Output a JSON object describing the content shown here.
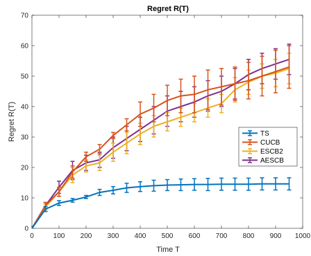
{
  "chart_data": {
    "type": "line",
    "title": "Regret R(T)",
    "xlabel": "Time T",
    "ylabel": "Regret R(T)",
    "xlim": [
      0,
      1000
    ],
    "ylim": [
      0,
      70
    ],
    "xticks": [
      0,
      100,
      200,
      300,
      400,
      500,
      600,
      700,
      800,
      900,
      1000
    ],
    "yticks": [
      0,
      10,
      20,
      30,
      40,
      50,
      60,
      70
    ],
    "grid": false,
    "legend_position": "right",
    "x": [
      0,
      50,
      100,
      150,
      200,
      250,
      300,
      350,
      400,
      450,
      500,
      550,
      600,
      650,
      700,
      750,
      800,
      850,
      900,
      950
    ],
    "series": [
      {
        "name": "TS",
        "color": "#0072BD",
        "values": [
          0,
          6.3,
          8.3,
          9.2,
          10.3,
          11.8,
          12.5,
          13.3,
          13.7,
          14.0,
          14.2,
          14.3,
          14.4,
          14.4,
          14.5,
          14.5,
          14.5,
          14.6,
          14.6,
          14.6
        ],
        "errors": [
          0,
          0.8,
          0.8,
          0.6,
          0.5,
          1.0,
          1.2,
          1.5,
          1.6,
          1.8,
          1.8,
          1.9,
          1.9,
          2.0,
          2.0,
          2.0,
          2.0,
          2.0,
          2.0,
          2.0
        ]
      },
      {
        "name": "CUCB",
        "color": "#D95319",
        "values": [
          0,
          7.5,
          12.0,
          18.5,
          23.5,
          26.0,
          30.5,
          34.0,
          37.5,
          39.5,
          42.0,
          43.5,
          44.0,
          45.5,
          46.5,
          47.5,
          48.5,
          50.0,
          51.5,
          53.0
        ],
        "errors": [
          0,
          1.0,
          1.5,
          2.0,
          1.5,
          1.5,
          1.0,
          2.0,
          4.0,
          4.5,
          5.0,
          5.5,
          6.0,
          6.5,
          6.0,
          5.5,
          6.0,
          6.5,
          7.0,
          7.0
        ]
      },
      {
        "name": "ESCB2",
        "color": "#EDB120",
        "values": [
          0,
          7.0,
          12.0,
          17.5,
          20.5,
          21.5,
          25.0,
          28.0,
          31.0,
          33.5,
          35.0,
          36.5,
          38.0,
          39.5,
          41.0,
          45.5,
          48.0,
          50.0,
          51.0,
          52.5
        ],
        "errors": [
          0,
          1.0,
          1.5,
          2.5,
          2.0,
          2.5,
          3.0,
          3.5,
          3.5,
          3.5,
          3.0,
          3.0,
          3.0,
          3.0,
          3.0,
          4.0,
          4.0,
          4.0,
          4.5,
          5.0
        ]
      },
      {
        "name": "AESCB",
        "color": "#7E2F8E",
        "values": [
          0,
          7.5,
          13.5,
          19.0,
          21.5,
          22.5,
          26.5,
          29.5,
          32.5,
          35.5,
          38.5,
          40.0,
          41.5,
          43.5,
          45.0,
          47.5,
          50.5,
          52.5,
          54.0,
          55.5
        ],
        "errors": [
          0,
          1.0,
          2.0,
          3.0,
          2.5,
          2.5,
          3.5,
          4.0,
          4.0,
          4.5,
          5.0,
          5.0,
          5.0,
          5.0,
          5.0,
          5.0,
          5.0,
          5.0,
          5.0,
          5.0
        ]
      }
    ]
  }
}
